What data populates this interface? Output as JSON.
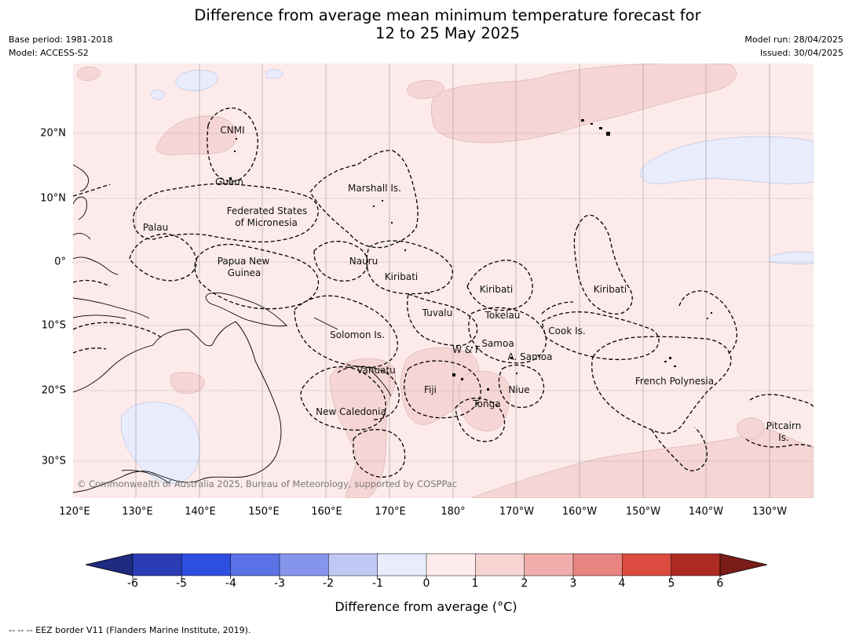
{
  "header": {
    "title_line1": "Difference from average mean minimum temperature forecast for",
    "title_line2": "12 to 25 May 2025",
    "base_period": "Base period: 1981-2018",
    "model": "Model: ACCESS-S2",
    "model_run": "Model run: 28/04/2025",
    "issued": "Issued: 30/04/2025"
  },
  "map": {
    "lon_labels": [
      "120°E",
      "130°E",
      "140°E",
      "150°E",
      "160°E",
      "170°E",
      "180°",
      "170°W",
      "160°W",
      "150°W",
      "140°W",
      "130°W"
    ],
    "lat_labels": [
      "20°N",
      "10°N",
      "0°",
      "10°S",
      "20°S",
      "30°S"
    ],
    "regions": [
      {
        "name": "CNMI"
      },
      {
        "name": "Guam"
      },
      {
        "name": "Marshall Is."
      },
      {
        "name": "Federated States"
      },
      {
        "name": "of Micronesia"
      },
      {
        "name": "Palau"
      },
      {
        "name": "Papua New"
      },
      {
        "name": "Guinea"
      },
      {
        "name": "Nauru"
      },
      {
        "name": "Kiribati"
      },
      {
        "name": "Kiribati"
      },
      {
        "name": "Kiribati"
      },
      {
        "name": "Tuvalu"
      },
      {
        "name": "Tokelau"
      },
      {
        "name": "Cook Is."
      },
      {
        "name": "Solomon Is."
      },
      {
        "name": "W & F"
      },
      {
        "name": "Samoa"
      },
      {
        "name": "A. Samoa"
      },
      {
        "name": "Vanuatu"
      },
      {
        "name": "Fiji"
      },
      {
        "name": "Niue"
      },
      {
        "name": "Tonga"
      },
      {
        "name": "French Polynesia"
      },
      {
        "name": "New Caledonia"
      },
      {
        "name": "Pitcairn"
      },
      {
        "name": "Is."
      }
    ],
    "copyright": "© Commonwealth of Australia 2025, Bureau of Meteorology, supported by COSPPac"
  },
  "colorbar": {
    "ticks": [
      "-6",
      "-5",
      "-4",
      "-3",
      "-2",
      "-1",
      "0",
      "1",
      "2",
      "3",
      "4",
      "5",
      "6"
    ],
    "colors": [
      "#1f2b80",
      "#2a3db5",
      "#2f4fe0",
      "#5a72e6",
      "#8595ec",
      "#c0c8f4",
      "#e8ecfc",
      "#fdeceb",
      "#f7d4d2",
      "#efaeab",
      "#e88580",
      "#dc4a40",
      "#ad2a22",
      "#7a1c18"
    ],
    "label": "Difference from average (°C)"
  },
  "footnote": "--  --  -- EEZ border V11 (Flanders Marine Institute, 2019)."
}
